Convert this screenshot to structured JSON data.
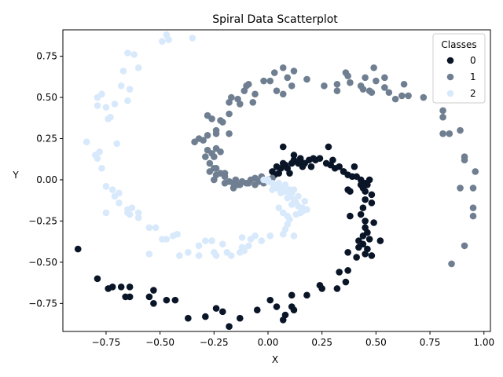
{
  "chart_data": {
    "type": "scatter",
    "title": "Spiral Data Scatterplot",
    "xlabel": "X",
    "ylabel": "Y",
    "xlim": [
      -0.95,
      1.03
    ],
    "ylim": [
      -0.92,
      0.91
    ],
    "xticks": [
      -0.75,
      -0.5,
      -0.25,
      0.0,
      0.25,
      0.5,
      0.75,
      1.0
    ],
    "xtick_labels": [
      "−0.75",
      "−0.50",
      "−0.25",
      "0.00",
      "0.25",
      "0.50",
      "0.75",
      "1.00"
    ],
    "yticks": [
      -0.75,
      -0.5,
      -0.25,
      0.0,
      0.25,
      0.5,
      0.75
    ],
    "ytick_labels": [
      "−0.75",
      "−0.50",
      "−0.25",
      "0.00",
      "0.25",
      "0.50",
      "0.75"
    ],
    "grid": false,
    "legend": {
      "title": "Classes",
      "placement": "top-right"
    },
    "series": [
      {
        "name": "0",
        "color": "#0a1628",
        "points": [
          [
            0.0,
            0.0
          ],
          [
            0.02,
            0.05
          ],
          [
            0.04,
            0.08
          ],
          [
            0.06,
            0.07
          ],
          [
            0.07,
            0.1
          ],
          [
            0.08,
            0.09
          ],
          [
            0.09,
            0.07
          ],
          [
            0.11,
            0.1
          ],
          [
            0.12,
            0.12
          ],
          [
            0.14,
            0.1
          ],
          [
            0.15,
            0.12
          ],
          [
            0.17,
            0.1
          ],
          [
            0.19,
            0.12
          ],
          [
            0.21,
            0.13
          ],
          [
            0.22,
            0.12
          ],
          [
            0.24,
            0.13
          ],
          [
            0.27,
            0.1
          ],
          [
            0.29,
            0.09
          ],
          [
            0.31,
            0.07
          ],
          [
            0.33,
            0.08
          ],
          [
            0.35,
            0.05
          ],
          [
            0.37,
            0.03
          ],
          [
            0.39,
            0.02
          ],
          [
            0.41,
            0.02
          ],
          [
            0.43,
            0.0
          ],
          [
            0.45,
            -0.02
          ],
          [
            0.44,
            -0.05
          ],
          [
            0.46,
            -0.03
          ],
          [
            0.47,
            0.0
          ],
          [
            0.45,
            -0.07
          ],
          [
            0.48,
            -0.09
          ],
          [
            0.45,
            -0.12
          ],
          [
            0.48,
            -0.14
          ],
          [
            0.44,
            -0.17
          ],
          [
            0.43,
            -0.21
          ],
          [
            0.45,
            -0.25
          ],
          [
            0.49,
            -0.26
          ],
          [
            0.45,
            -0.29
          ],
          [
            0.46,
            -0.32
          ],
          [
            0.44,
            -0.34
          ],
          [
            0.42,
            -0.37
          ],
          [
            0.47,
            -0.36
          ],
          [
            0.52,
            -0.37
          ],
          [
            0.44,
            -0.39
          ],
          [
            0.42,
            -0.41
          ],
          [
            0.46,
            -0.42
          ],
          [
            0.48,
            -0.46
          ],
          [
            0.45,
            -0.45
          ],
          [
            0.41,
            -0.47
          ],
          [
            0.37,
            -0.44
          ],
          [
            0.37,
            -0.55
          ],
          [
            0.33,
            -0.56
          ],
          [
            0.36,
            -0.62
          ],
          [
            0.32,
            -0.66
          ],
          [
            0.24,
            -0.64
          ],
          [
            0.25,
            -0.66
          ],
          [
            0.18,
            -0.7
          ],
          [
            0.11,
            -0.7
          ],
          [
            0.11,
            -0.77
          ],
          [
            0.12,
            -0.79
          ],
          [
            0.08,
            -0.82
          ],
          [
            0.07,
            -0.85
          ],
          [
            0.04,
            -0.77
          ],
          [
            0.01,
            -0.73
          ],
          [
            -0.05,
            -0.79
          ],
          [
            -0.13,
            -0.84
          ],
          [
            -0.18,
            -0.89
          ],
          [
            -0.21,
            -0.8
          ],
          [
            -0.24,
            -0.78
          ],
          [
            -0.29,
            -0.83
          ],
          [
            -0.37,
            -0.84
          ],
          [
            -0.43,
            -0.73
          ],
          [
            -0.47,
            -0.73
          ],
          [
            -0.53,
            -0.67
          ],
          [
            -0.53,
            -0.75
          ],
          [
            -0.55,
            -0.71
          ],
          [
            -0.64,
            -0.65
          ],
          [
            -0.64,
            -0.71
          ],
          [
            -0.66,
            -0.71
          ],
          [
            -0.68,
            -0.65
          ],
          [
            -0.72,
            -0.65
          ],
          [
            -0.74,
            -0.66
          ],
          [
            -0.79,
            -0.6
          ],
          [
            -0.88,
            -0.42
          ],
          [
            0.07,
            0.2
          ],
          [
            0.15,
            0.13
          ],
          [
            0.12,
            0.15
          ],
          [
            0.28,
            0.2
          ],
          [
            0.37,
            -0.06
          ],
          [
            0.38,
            -0.22
          ],
          [
            0.38,
            -0.07
          ],
          [
            0.4,
            0.08
          ],
          [
            0.35,
            0.05
          ],
          [
            0.3,
            0.12
          ],
          [
            0.43,
            -0.03
          ],
          [
            0.2,
            0.08
          ],
          [
            0.16,
            0.08
          ],
          [
            0.1,
            0.04
          ],
          [
            0.05,
            0.04
          ],
          [
            0.03,
            0.03
          ]
        ]
      },
      {
        "name": "1",
        "color": "#6f7f91",
        "points": [
          [
            0.0,
            0.0
          ],
          [
            -0.02,
            -0.02
          ],
          [
            -0.04,
            -0.01
          ],
          [
            -0.06,
            -0.03
          ],
          [
            -0.08,
            0.0
          ],
          [
            -0.1,
            -0.02
          ],
          [
            -0.12,
            -0.01
          ],
          [
            -0.14,
            -0.03
          ],
          [
            -0.16,
            -0.02
          ],
          [
            -0.18,
            -0.01
          ],
          [
            -0.2,
            0.02
          ],
          [
            -0.22,
            0.04
          ],
          [
            -0.24,
            0.03
          ],
          [
            -0.25,
            0.07
          ],
          [
            -0.27,
            0.05
          ],
          [
            -0.24,
            0.07
          ],
          [
            -0.27,
            0.1
          ],
          [
            -0.25,
            0.14
          ],
          [
            -0.26,
            0.16
          ],
          [
            -0.28,
            0.18
          ],
          [
            -0.24,
            0.19
          ],
          [
            -0.22,
            0.17
          ],
          [
            -0.29,
            0.14
          ],
          [
            -0.3,
            0.24
          ],
          [
            -0.34,
            0.23
          ],
          [
            -0.32,
            0.25
          ],
          [
            -0.28,
            0.27
          ],
          [
            -0.24,
            0.28
          ],
          [
            -0.24,
            0.3
          ],
          [
            -0.22,
            0.36
          ],
          [
            -0.21,
            0.35
          ],
          [
            -0.28,
            0.39
          ],
          [
            -0.26,
            0.37
          ],
          [
            -0.18,
            0.4
          ],
          [
            -0.18,
            0.47
          ],
          [
            -0.17,
            0.5
          ],
          [
            -0.13,
            0.46
          ],
          [
            -0.14,
            0.49
          ],
          [
            -0.11,
            0.54
          ],
          [
            -0.1,
            0.57
          ],
          [
            -0.09,
            0.58
          ],
          [
            -0.07,
            0.47
          ],
          [
            -0.06,
            0.52
          ],
          [
            -0.02,
            0.6
          ],
          [
            0.01,
            0.6
          ],
          [
            0.03,
            0.65
          ],
          [
            0.07,
            0.68
          ],
          [
            0.09,
            0.62
          ],
          [
            0.07,
            0.52
          ],
          [
            0.04,
            0.54
          ],
          [
            0.11,
            0.57
          ],
          [
            0.12,
            0.66
          ],
          [
            0.18,
            0.61
          ],
          [
            0.26,
            0.57
          ],
          [
            0.32,
            0.54
          ],
          [
            0.32,
            0.58
          ],
          [
            0.36,
            0.65
          ],
          [
            0.38,
            0.59
          ],
          [
            0.37,
            0.63
          ],
          [
            0.43,
            0.57
          ],
          [
            0.44,
            0.55
          ],
          [
            0.45,
            0.62
          ],
          [
            0.48,
            0.53
          ],
          [
            0.47,
            0.54
          ],
          [
            0.49,
            0.68
          ],
          [
            0.5,
            0.6
          ],
          [
            0.54,
            0.62
          ],
          [
            0.56,
            0.53
          ],
          [
            0.54,
            0.56
          ],
          [
            0.59,
            0.49
          ],
          [
            0.62,
            0.51
          ],
          [
            0.63,
            0.58
          ],
          [
            0.65,
            0.51
          ],
          [
            0.72,
            0.5
          ],
          [
            0.81,
            0.42
          ],
          [
            0.81,
            0.38
          ],
          [
            0.81,
            0.28
          ],
          [
            0.84,
            0.28
          ],
          [
            0.89,
            0.3
          ],
          [
            0.91,
            0.12
          ],
          [
            0.91,
            0.14
          ],
          [
            0.96,
            0.05
          ],
          [
            0.89,
            -0.05
          ],
          [
            0.95,
            -0.05
          ],
          [
            0.95,
            -0.17
          ],
          [
            0.95,
            -0.22
          ],
          [
            0.91,
            -0.4
          ],
          [
            0.85,
            -0.51
          ],
          [
            -0.18,
            0.28
          ],
          [
            -0.2,
            0.04
          ],
          [
            -0.15,
            0.0
          ],
          [
            -0.13,
            -0.03
          ],
          [
            -0.09,
            -0.02
          ],
          [
            -0.16,
            -0.05
          ],
          [
            -0.2,
            -0.02
          ],
          [
            -0.25,
            0.0
          ],
          [
            -0.06,
            0.01
          ],
          [
            -0.03,
            0.02
          ],
          [
            0.02,
            0.01
          ],
          [
            -0.01,
            -0.01
          ]
        ]
      },
      {
        "name": "2",
        "color": "#d8e9fb",
        "points": [
          [
            0.0,
            0.0
          ],
          [
            0.02,
            -0.02
          ],
          [
            0.04,
            -0.03
          ],
          [
            0.06,
            -0.05
          ],
          [
            0.08,
            -0.07
          ],
          [
            0.1,
            -0.06
          ],
          [
            0.11,
            -0.08
          ],
          [
            0.12,
            -0.06
          ],
          [
            0.1,
            -0.1
          ],
          [
            0.12,
            -0.12
          ],
          [
            0.13,
            -0.14
          ],
          [
            0.14,
            -0.16
          ],
          [
            0.11,
            -0.15
          ],
          [
            0.16,
            -0.17
          ],
          [
            0.17,
            -0.13
          ],
          [
            0.18,
            -0.18
          ],
          [
            0.16,
            -0.19
          ],
          [
            0.13,
            -0.21
          ],
          [
            0.09,
            -0.22
          ],
          [
            0.1,
            -0.24
          ],
          [
            0.09,
            -0.27
          ],
          [
            0.08,
            -0.3
          ],
          [
            0.07,
            -0.33
          ],
          [
            0.12,
            -0.34
          ],
          [
            0.01,
            -0.34
          ],
          [
            0.05,
            -0.17
          ],
          [
            -0.06,
            -0.34
          ],
          [
            -0.08,
            -0.36
          ],
          [
            -0.09,
            -0.4
          ],
          [
            -0.12,
            -0.41
          ],
          [
            -0.11,
            -0.43
          ],
          [
            -0.13,
            -0.44
          ],
          [
            -0.17,
            -0.46
          ],
          [
            -0.19,
            -0.44
          ],
          [
            -0.25,
            -0.44
          ],
          [
            -0.26,
            -0.37
          ],
          [
            -0.29,
            -0.37
          ],
          [
            -0.32,
            -0.4
          ],
          [
            -0.32,
            -0.46
          ],
          [
            -0.37,
            -0.44
          ],
          [
            -0.41,
            -0.46
          ],
          [
            -0.42,
            -0.33
          ],
          [
            -0.44,
            -0.34
          ],
          [
            -0.47,
            -0.36
          ],
          [
            -0.49,
            -0.36
          ],
          [
            -0.52,
            -0.29
          ],
          [
            -0.55,
            -0.29
          ],
          [
            -0.55,
            -0.45
          ],
          [
            -0.6,
            -0.2
          ],
          [
            -0.64,
            -0.21
          ],
          [
            -0.65,
            -0.18
          ],
          [
            -0.69,
            -0.14
          ],
          [
            -0.72,
            -0.06
          ],
          [
            -0.71,
            -0.1
          ],
          [
            -0.75,
            -0.04
          ],
          [
            -0.75,
            -0.2
          ],
          [
            -0.77,
            0.07
          ],
          [
            -0.79,
            0.13
          ],
          [
            -0.8,
            0.15
          ],
          [
            -0.78,
            0.17
          ],
          [
            -0.84,
            0.23
          ],
          [
            -0.7,
            0.22
          ],
          [
            -0.74,
            0.37
          ],
          [
            -0.73,
            0.38
          ],
          [
            -0.71,
            0.46
          ],
          [
            -0.75,
            0.44
          ],
          [
            -0.79,
            0.5
          ],
          [
            -0.79,
            0.45
          ],
          [
            -0.77,
            0.52
          ],
          [
            -0.68,
            0.57
          ],
          [
            -0.65,
            0.48
          ],
          [
            -0.64,
            0.55
          ],
          [
            -0.67,
            0.66
          ],
          [
            -0.65,
            0.77
          ],
          [
            -0.62,
            0.76
          ],
          [
            -0.6,
            0.68
          ],
          [
            -0.49,
            0.84
          ],
          [
            -0.47,
            0.88
          ],
          [
            -0.46,
            0.85
          ],
          [
            -0.35,
            0.86
          ],
          [
            -0.63,
            -0.17
          ],
          [
            -0.6,
            -0.23
          ],
          [
            -0.65,
            -0.2
          ],
          [
            -0.69,
            -0.08
          ],
          [
            0.04,
            -0.05
          ],
          [
            0.06,
            -0.08
          ],
          [
            0.02,
            -0.06
          ],
          [
            0.0,
            -0.01
          ],
          [
            0.05,
            -0.02
          ],
          [
            0.08,
            -0.03
          ],
          [
            0.03,
            -0.04
          ],
          [
            -0.02,
            0.0
          ],
          [
            0.09,
            -0.11
          ],
          [
            0.14,
            -0.1
          ],
          [
            0.15,
            -0.2
          ],
          [
            0.07,
            -0.2
          ],
          [
            -0.12,
            -0.35
          ],
          [
            -0.03,
            -0.37
          ],
          [
            -0.24,
            -0.46
          ],
          [
            -0.21,
            -0.39
          ]
        ]
      }
    ]
  }
}
